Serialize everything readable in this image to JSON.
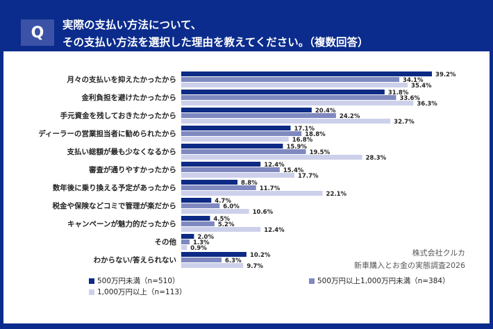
{
  "header": {
    "q_badge": "Q",
    "title_line1": "実際の支払い方法について、",
    "title_line2": "その支払い方法を選択した理由を教えてください。（複数回答）"
  },
  "colors": {
    "background": "#0b2c8c",
    "series1": "#0d2a85",
    "series2": "#7f89c0",
    "series3": "#cdd0ea"
  },
  "chart_data": {
    "type": "bar",
    "orientation": "horizontal",
    "categories": [
      "月々の支払いを抑えたかったから",
      "金利負担を避けたかったから",
      "手元資金を残しておきたかったから",
      "ディーラーの営業担当者に勧められたから",
      "支払い総額が最も少なくなるから",
      "審査が通りやすかったから",
      "数年後に乗り換える予定があったから",
      "税金や保険などコミで管理が楽だから",
      "キャンペーンが魅力的だったから",
      "その他",
      "わからない/答えられない"
    ],
    "series": [
      {
        "name": "500万円未満（n=510）",
        "values": [
          39.2,
          31.8,
          20.4,
          17.1,
          15.9,
          12.4,
          8.8,
          4.7,
          4.5,
          2.0,
          10.2
        ]
      },
      {
        "name": "500万円以上1,000万円未満（n=384）",
        "values": [
          34.1,
          33.6,
          24.2,
          18.8,
          19.5,
          15.4,
          11.7,
          6.0,
          5.2,
          1.3,
          6.3
        ]
      },
      {
        "name": "1,000万円以上（n=113）",
        "values": [
          35.4,
          36.3,
          32.7,
          16.8,
          28.3,
          17.7,
          22.1,
          10.6,
          12.4,
          0.9,
          9.7
        ]
      }
    ],
    "unit": "%",
    "grid": false,
    "legend_placement": "bottom"
  },
  "footer": {
    "company": "株式会社クルカ",
    "survey": "新車購入とお金の実態調査2026"
  }
}
